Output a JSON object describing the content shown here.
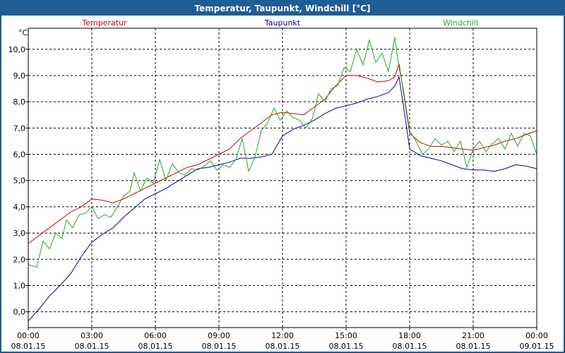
{
  "window": {
    "title": "Temperatur, Taupunkt, Windchill [°C]"
  },
  "chart_data": {
    "type": "line",
    "title": "Temperatur, Taupunkt, Windchill [°C]",
    "ylabel": "°C",
    "ylim": [
      -0.6,
      10.8
    ],
    "xlim": [
      0,
      24
    ],
    "grid": true,
    "legend_placement": "top",
    "y_ticks": [
      "0,0",
      "1,0",
      "2,0",
      "3,0",
      "4,0",
      "5,0",
      "6,0",
      "7,0",
      "8,0",
      "9,0",
      "10,0"
    ],
    "x_ticks": [
      {
        "time": "00:00",
        "date": "08.01.15"
      },
      {
        "time": "03:00",
        "date": "08.01.15"
      },
      {
        "time": "06:00",
        "date": "08.01.15"
      },
      {
        "time": "09:00",
        "date": "08.01.15"
      },
      {
        "time": "12:00",
        "date": "08.01.15"
      },
      {
        "time": "15:00",
        "date": "08.01.15"
      },
      {
        "time": "18:00",
        "date": "08.01.15"
      },
      {
        "time": "21:00",
        "date": "08.01.15"
      },
      {
        "time": "00:00",
        "date": "09.01.15"
      }
    ],
    "series": [
      {
        "name": "Temperatur",
        "color": "#cc0000",
        "points": [
          [
            0,
            2.6
          ],
          [
            0.5,
            2.9
          ],
          [
            1,
            3.2
          ],
          [
            1.5,
            3.5
          ],
          [
            2,
            3.8
          ],
          [
            2.5,
            4.0
          ],
          [
            3,
            4.3
          ],
          [
            3.5,
            4.25
          ],
          [
            4,
            4.15
          ],
          [
            4.5,
            4.3
          ],
          [
            5,
            4.5
          ],
          [
            5.5,
            4.7
          ],
          [
            6,
            4.9
          ],
          [
            6.5,
            5.1
          ],
          [
            7,
            5.3
          ],
          [
            7.5,
            5.5
          ],
          [
            8,
            5.6
          ],
          [
            8.5,
            5.8
          ],
          [
            9,
            6.0
          ],
          [
            9.5,
            6.2
          ],
          [
            10,
            6.6
          ],
          [
            10.5,
            6.9
          ],
          [
            11,
            7.2
          ],
          [
            11.5,
            7.5
          ],
          [
            12,
            7.6
          ],
          [
            12.5,
            7.55
          ],
          [
            13,
            7.5
          ],
          [
            13.5,
            7.8
          ],
          [
            14,
            8.1
          ],
          [
            14.5,
            8.6
          ],
          [
            15,
            9.0
          ],
          [
            15.5,
            9.0
          ],
          [
            16,
            8.9
          ],
          [
            16.5,
            8.75
          ],
          [
            17,
            8.8
          ],
          [
            17.3,
            8.95
          ],
          [
            17.5,
            9.45
          ],
          [
            17.7,
            8.4
          ],
          [
            18,
            6.8
          ],
          [
            18.5,
            6.45
          ],
          [
            19,
            6.3
          ],
          [
            19.5,
            6.3
          ],
          [
            20,
            6.25
          ],
          [
            20.5,
            6.2
          ],
          [
            21,
            6.15
          ],
          [
            21.5,
            6.25
          ],
          [
            22,
            6.35
          ],
          [
            22.5,
            6.5
          ],
          [
            23,
            6.6
          ],
          [
            23.5,
            6.75
          ],
          [
            24,
            6.9
          ]
        ]
      },
      {
        "name": "Taupunkt",
        "color": "#0000aa",
        "points": [
          [
            0,
            -0.35
          ],
          [
            0.5,
            0.1
          ],
          [
            1,
            0.6
          ],
          [
            1.5,
            1.0
          ],
          [
            2,
            1.45
          ],
          [
            2.5,
            2.1
          ],
          [
            3,
            2.65
          ],
          [
            3.5,
            2.95
          ],
          [
            4,
            3.2
          ],
          [
            4.5,
            3.6
          ],
          [
            5,
            3.95
          ],
          [
            5.5,
            4.3
          ],
          [
            6,
            4.5
          ],
          [
            6.5,
            4.7
          ],
          [
            7,
            4.95
          ],
          [
            7.5,
            5.2
          ],
          [
            8,
            5.45
          ],
          [
            8.5,
            5.5
          ],
          [
            9,
            5.6
          ],
          [
            9.5,
            5.7
          ],
          [
            10,
            5.85
          ],
          [
            10.5,
            5.85
          ],
          [
            11,
            5.9
          ],
          [
            11.5,
            6.0
          ],
          [
            12,
            6.7
          ],
          [
            12.5,
            6.95
          ],
          [
            13,
            7.1
          ],
          [
            13.5,
            7.3
          ],
          [
            14,
            7.55
          ],
          [
            14.5,
            7.75
          ],
          [
            15,
            7.85
          ],
          [
            15.5,
            7.95
          ],
          [
            16,
            8.1
          ],
          [
            16.5,
            8.2
          ],
          [
            17,
            8.35
          ],
          [
            17.3,
            8.6
          ],
          [
            17.5,
            8.95
          ],
          [
            17.7,
            7.9
          ],
          [
            18,
            6.2
          ],
          [
            18.5,
            5.95
          ],
          [
            19,
            5.85
          ],
          [
            19.5,
            5.75
          ],
          [
            20,
            5.6
          ],
          [
            20.5,
            5.45
          ],
          [
            21,
            5.4
          ],
          [
            21.5,
            5.4
          ],
          [
            22,
            5.35
          ],
          [
            22.5,
            5.45
          ],
          [
            23,
            5.6
          ],
          [
            23.5,
            5.55
          ],
          [
            24,
            5.45
          ]
        ]
      },
      {
        "name": "Windchill",
        "color": "#22aa22",
        "points": [
          [
            0,
            1.8
          ],
          [
            0.4,
            1.7
          ],
          [
            0.7,
            2.7
          ],
          [
            1,
            2.4
          ],
          [
            1.3,
            3.0
          ],
          [
            1.6,
            2.8
          ],
          [
            1.8,
            3.5
          ],
          [
            2.1,
            3.2
          ],
          [
            2.4,
            3.7
          ],
          [
            2.7,
            3.75
          ],
          [
            3,
            4.0
          ],
          [
            3.3,
            3.55
          ],
          [
            3.6,
            3.7
          ],
          [
            3.9,
            3.6
          ],
          [
            4.2,
            4.0
          ],
          [
            4.5,
            4.4
          ],
          [
            4.8,
            4.6
          ],
          [
            5,
            5.3
          ],
          [
            5.3,
            4.6
          ],
          [
            5.6,
            5.1
          ],
          [
            5.9,
            4.9
          ],
          [
            6.2,
            5.8
          ],
          [
            6.5,
            5.0
          ],
          [
            6.8,
            5.65
          ],
          [
            7.1,
            5.3
          ],
          [
            7.4,
            5.2
          ],
          [
            7.7,
            5.45
          ],
          [
            8,
            5.4
          ],
          [
            8.3,
            5.55
          ],
          [
            8.6,
            5.75
          ],
          [
            8.9,
            5.4
          ],
          [
            9.2,
            5.6
          ],
          [
            9.5,
            5.5
          ],
          [
            9.8,
            5.8
          ],
          [
            10.1,
            6.6
          ],
          [
            10.4,
            5.35
          ],
          [
            10.7,
            5.9
          ],
          [
            11,
            6.9
          ],
          [
            11.3,
            7.2
          ],
          [
            11.6,
            7.75
          ],
          [
            11.9,
            7.3
          ],
          [
            12.2,
            7.65
          ],
          [
            12.5,
            7.4
          ],
          [
            12.8,
            7.3
          ],
          [
            13.1,
            7.0
          ],
          [
            13.4,
            7.35
          ],
          [
            13.7,
            8.3
          ],
          [
            14,
            8.0
          ],
          [
            14.3,
            8.5
          ],
          [
            14.6,
            8.6
          ],
          [
            14.9,
            9.3
          ],
          [
            15.2,
            9.15
          ],
          [
            15.5,
            10.0
          ],
          [
            15.8,
            9.4
          ],
          [
            16.1,
            10.35
          ],
          [
            16.4,
            9.5
          ],
          [
            16.7,
            9.85
          ],
          [
            17,
            9.15
          ],
          [
            17.3,
            10.45
          ],
          [
            17.5,
            9.3
          ],
          [
            17.7,
            8.5
          ],
          [
            18,
            6.9
          ],
          [
            18.3,
            6.5
          ],
          [
            18.6,
            6.0
          ],
          [
            18.9,
            6.2
          ],
          [
            19.2,
            6.6
          ],
          [
            19.5,
            6.35
          ],
          [
            19.8,
            6.5
          ],
          [
            20.1,
            6.1
          ],
          [
            20.4,
            6.5
          ],
          [
            20.7,
            5.5
          ],
          [
            21,
            6.2
          ],
          [
            21.3,
            6.5
          ],
          [
            21.6,
            6.1
          ],
          [
            21.9,
            6.4
          ],
          [
            22.2,
            6.6
          ],
          [
            22.5,
            6.2
          ],
          [
            22.8,
            6.8
          ],
          [
            23.1,
            6.3
          ],
          [
            23.4,
            6.8
          ],
          [
            23.7,
            6.7
          ],
          [
            24,
            6.0
          ]
        ]
      }
    ]
  }
}
